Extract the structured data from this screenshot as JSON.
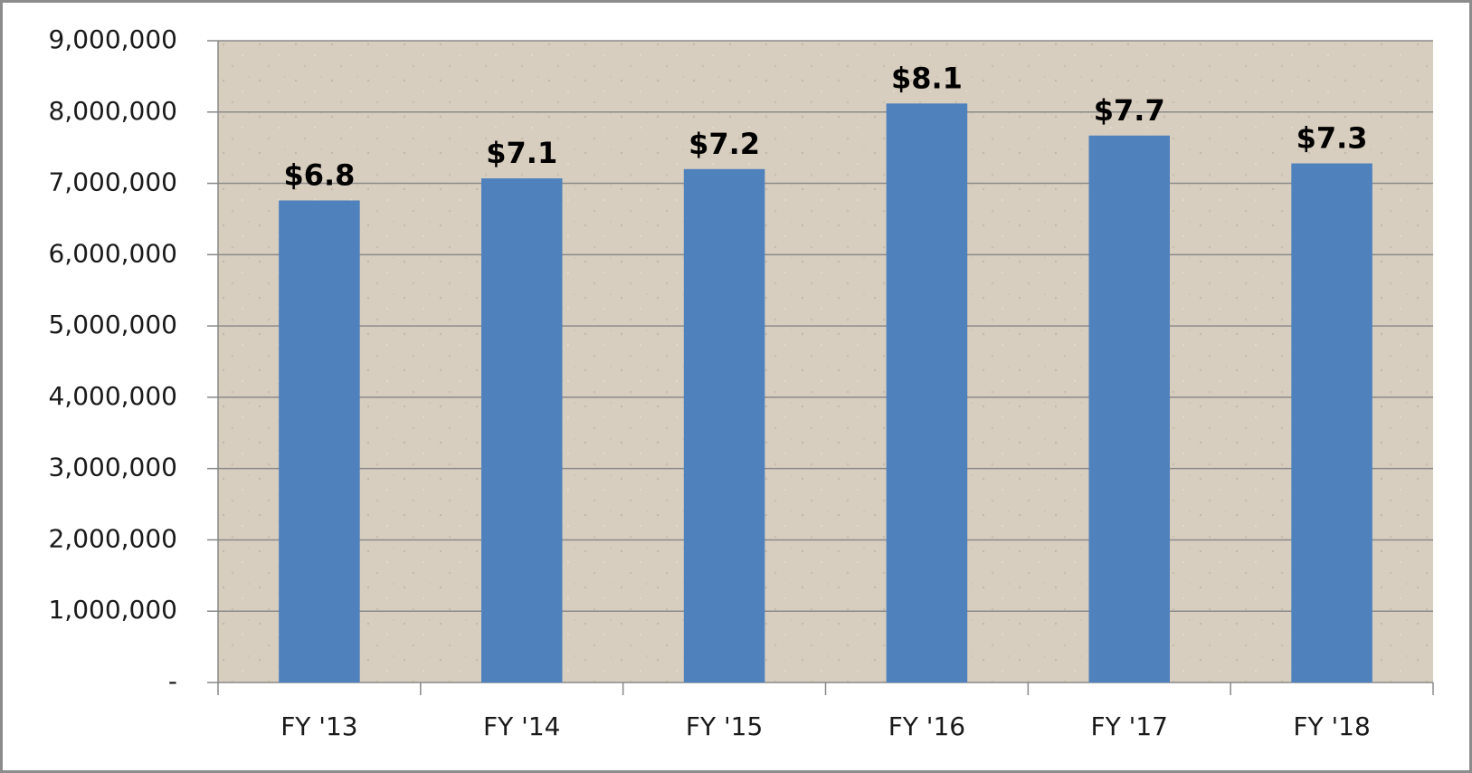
{
  "chart_data": {
    "type": "bar",
    "categories": [
      "FY '13",
      "FY '14",
      "FY '15",
      "FY '16",
      "FY '17",
      "FY '18"
    ],
    "values": [
      6760000,
      7070000,
      7200000,
      8120000,
      7670000,
      7280000
    ],
    "value_labels": [
      "$6.8",
      "$7.1",
      "$7.2",
      "$8.1",
      "$7.7",
      "$7.3"
    ],
    "color": "#4f81bd",
    "ylim": [
      0,
      9000000
    ],
    "yticks": [
      {
        "value": 0,
        "label": "-"
      },
      {
        "value": 1000000,
        "label": "1,000,000"
      },
      {
        "value": 2000000,
        "label": "2,000,000"
      },
      {
        "value": 3000000,
        "label": "3,000,000"
      },
      {
        "value": 4000000,
        "label": "4,000,000"
      },
      {
        "value": 5000000,
        "label": "5,000,000"
      },
      {
        "value": 6000000,
        "label": "6,000,000"
      },
      {
        "value": 7000000,
        "label": "7,000,000"
      },
      {
        "value": 8000000,
        "label": "8,000,000"
      },
      {
        "value": 9000000,
        "label": "9,000,000"
      }
    ],
    "grid": true
  }
}
